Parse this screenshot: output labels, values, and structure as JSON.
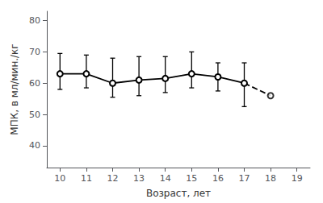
{
  "chart_data": {
    "type": "line",
    "xlabel": "Возраст, лет",
    "ylabel": "МПК, в мл/мин./кг",
    "series": [
      {
        "type": "line",
        "x": [
          10,
          11,
          12,
          13,
          14,
          15,
          16,
          17
        ],
        "values": [
          63.0,
          63.0,
          60.0,
          61.0,
          61.5,
          63.0,
          62.0,
          60.0
        ],
        "error_upper": [
          6.5,
          6.0,
          8.0,
          7.5,
          7.0,
          7.0,
          4.5,
          6.5
        ],
        "error_lower": [
          5.0,
          4.5,
          4.5,
          5.0,
          4.5,
          4.5,
          4.5,
          7.5
        ],
        "color": "black",
        "marker": "empty_circle",
        "line_style": "solid"
      },
      {
        "type": "line",
        "x": [
          17,
          18
        ],
        "values": [
          60.0,
          56.0
        ],
        "color": "black",
        "line_style": "dashed"
      },
      {
        "type": "scatter",
        "x": [
          18
        ],
        "values": [
          56.0
        ],
        "color": "black",
        "marker": "empty_circle"
      }
    ],
    "xlim": [
      9.5,
      19.5
    ],
    "ylim": [
      33,
      83
    ],
    "xticks": [
      10,
      11,
      12,
      13,
      14,
      15,
      16,
      17,
      18,
      19
    ],
    "yticks": [
      40,
      50,
      60,
      70,
      80
    ],
    "grid": false
  }
}
